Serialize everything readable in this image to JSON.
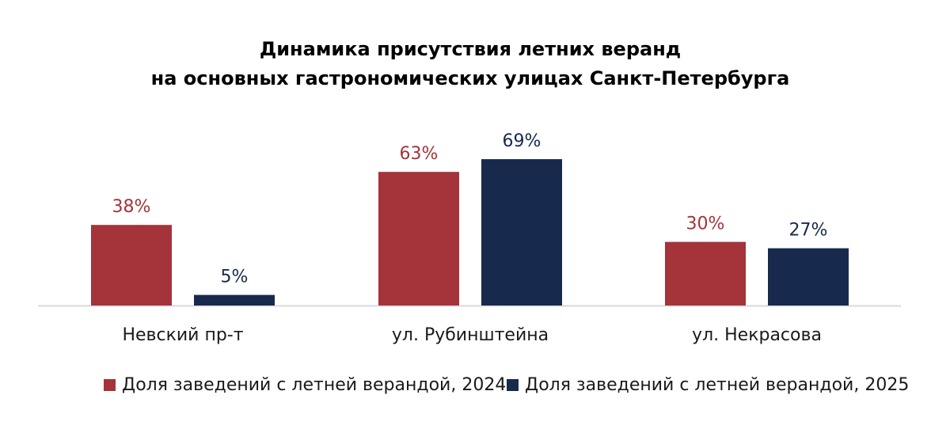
{
  "chart_data": {
    "type": "bar",
    "title": [
      "Динамика присутствия летних веранд",
      "на основных гастрономических улицах Санкт-Петербурга"
    ],
    "categories": [
      "Невский пр-т",
      "ул. Рубинштейна",
      "ул. Некрасова"
    ],
    "series": [
      {
        "name": "Доля заведений с летней верандой, 2024",
        "values": [
          38,
          63,
          30
        ],
        "labels": [
          "38%",
          "63%",
          "30%"
        ],
        "color": "#a4343a"
      },
      {
        "name": "Доля заведений с летней верандой, 2025",
        "values": [
          5,
          69,
          27
        ],
        "labels": [
          "5%",
          "69%",
          "27%"
        ],
        "color": "#172a4d"
      }
    ],
    "ylim": [
      0,
      100
    ],
    "grid": false,
    "legend_position": "bottom",
    "baseline_color": "#d9d9d9"
  }
}
